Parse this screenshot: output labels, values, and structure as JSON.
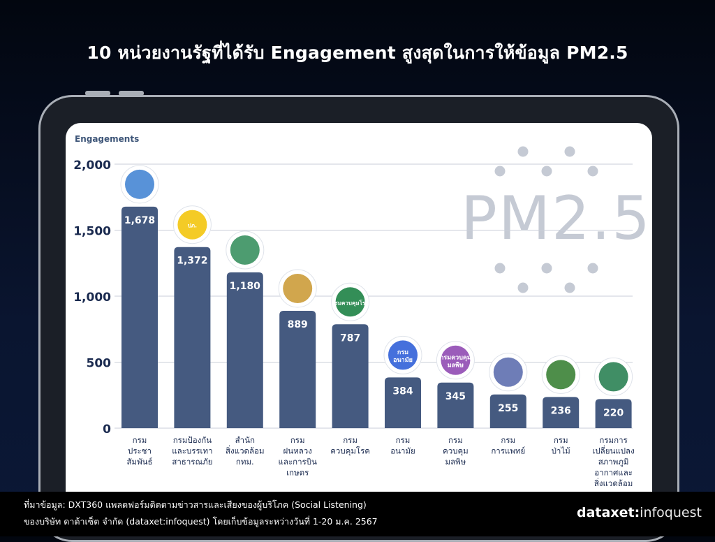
{
  "title": "10 หน่วยงานรัฐที่ได้รับ Engagement สูงสุดในการให้ข้อมูล PM2.5",
  "chart_data": {
    "type": "bar",
    "ylabel": "Engagements",
    "ylim": [
      0,
      2000
    ],
    "yticks": [
      "0",
      "500",
      "1,000",
      "1,500",
      "2,000"
    ],
    "ytick_values": [
      0,
      500,
      1000,
      1500,
      2000
    ],
    "grid": true,
    "bar_color": "#455a80",
    "categories": [
      [
        "กรม",
        "ประชา",
        "สัมพันธ์"
      ],
      [
        "กรมป้องกัน",
        "และบรรเทา",
        "สาธารณภัย"
      ],
      [
        "สำนัก",
        "สิ่งแวดล้อม",
        "กทม."
      ],
      [
        "กรม",
        "ฝนหลวง",
        "และการบิน",
        "เกษตร"
      ],
      [
        "กรม",
        "ควบคุมโรค"
      ],
      [
        "กรม",
        "อนามัย"
      ],
      [
        "กรม",
        "ควบคุม",
        "มลพิษ"
      ],
      [
        "กรม",
        "การแพทย์"
      ],
      [
        "กรม",
        "ป่าไม้"
      ],
      [
        "กรมการ",
        "เปลี่ยนแปลง",
        "สภาพภูมิ",
        "อากาศและ",
        "สิ่งแวดล้อม"
      ]
    ],
    "values": [
      1678,
      1372,
      1180,
      889,
      787,
      384,
      345,
      255,
      236,
      220
    ],
    "value_labels": [
      "1,678",
      "1,372",
      "1,180",
      "889",
      "787",
      "384",
      "345",
      "255",
      "236",
      "220"
    ],
    "logos": [
      {
        "icon": "public-relations-logo",
        "color": "#3b7fd1"
      },
      {
        "icon": "disaster-prevention-logo",
        "color": "#f2c200",
        "text": "ปภ."
      },
      {
        "icon": "bma-environment-logo",
        "color": "#2e8b57"
      },
      {
        "icon": "royal-rainmaking-logo",
        "color": "#c9972e"
      },
      {
        "icon": "disease-control-logo",
        "color": "#0f7a3a",
        "text": "กรมควบคุมโรค"
      },
      {
        "icon": "health-department-logo",
        "color": "#2457d6",
        "text": "กรม อนามัย"
      },
      {
        "icon": "pollution-control-logo",
        "color": "#8a3fae",
        "text": "กรมควบคุม มลพิษ"
      },
      {
        "icon": "medical-services-logo",
        "color": "#5566aa"
      },
      {
        "icon": "forest-department-logo",
        "color": "#2f7a2a"
      },
      {
        "icon": "climate-change-logo",
        "color": "#1f7a4a"
      }
    ]
  },
  "watermark": {
    "text": "PM2.5",
    "color": "#c5cad4"
  },
  "source_line1": "ที่มาข้อมูล: DXT360 แพลตฟอร์มติดตามข่าวสารและเสียงของผู้บริโภค (Social Listening)",
  "source_line2": "ของบริษัท ดาต้าเซ็ต จำกัด (dataxet:infoquest) โดยเก็บข้อมูลระหว่างวันที่ 1-20 ม.ค. 2567",
  "brand": {
    "part1": "dataxet",
    "sep": ":",
    "part2": "infoquest"
  }
}
